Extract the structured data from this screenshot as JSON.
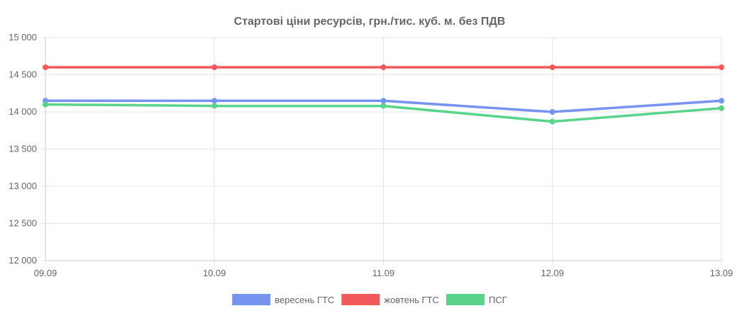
{
  "chart_data": {
    "type": "line",
    "title": "Стартові ціни ресурсів, грн./тис. куб. м. без ПДВ",
    "categories": [
      "09.09",
      "10.09",
      "11.09",
      "12.09",
      "13.09"
    ],
    "ylim": [
      12000,
      15000
    ],
    "yticks": [
      12000,
      12500,
      13000,
      13500,
      14000,
      14500,
      15000
    ],
    "ytick_labels": [
      "12 000",
      "12 500",
      "13 000",
      "13 500",
      "14 000",
      "14 500",
      "15 000"
    ],
    "grid": true,
    "legend_position": "bottom",
    "series": [
      {
        "name": "вересень ГТС",
        "color": "#7793f0",
        "values": [
          14150,
          14150,
          14150,
          14000,
          14150
        ]
      },
      {
        "name": "жовтень ГТС",
        "color": "#f2595b",
        "values": [
          14600,
          14600,
          14600,
          14600,
          14600
        ]
      },
      {
        "name": "ПСГ",
        "color": "#59d48a",
        "values": [
          14100,
          14080,
          14080,
          13870,
          14050
        ]
      }
    ]
  }
}
